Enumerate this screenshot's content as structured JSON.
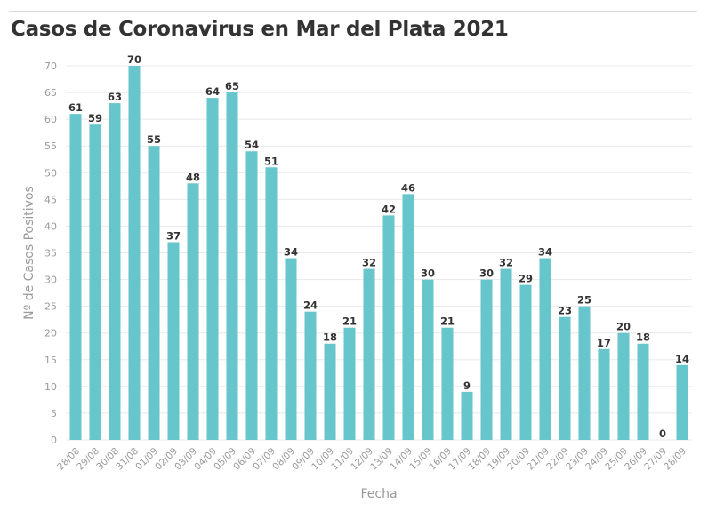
{
  "title": "Casos de Coronavirus en Mar del Plata 2021",
  "colors": {
    "bar": "#67c5cc",
    "grid": "#e8e8e8",
    "text": "#333333",
    "axis_text": "#999999"
  },
  "chart_data": {
    "type": "bar",
    "title": "Casos de Coronavirus en Mar del Plata 2021",
    "xlabel": "Fecha",
    "ylabel": "Nº de Casos Positivos",
    "ylim": [
      0,
      70
    ],
    "yticks": [
      0,
      5,
      10,
      15,
      20,
      25,
      30,
      35,
      40,
      45,
      50,
      55,
      60,
      65,
      70
    ],
    "grid": true,
    "categories": [
      "28/08",
      "29/08",
      "30/08",
      "31/08",
      "01/09",
      "02/09",
      "03/09",
      "04/09",
      "05/09",
      "06/09",
      "07/09",
      "08/09",
      "09/09",
      "10/09",
      "11/09",
      "12/09",
      "13/09",
      "14/09",
      "15/09",
      "16/09",
      "17/09",
      "18/09",
      "19/09",
      "20/09",
      "21/09",
      "22/09",
      "23/09",
      "24/09",
      "25/09",
      "26/09",
      "27/09",
      "28/09"
    ],
    "values": [
      61,
      59,
      63,
      70,
      55,
      37,
      48,
      64,
      65,
      54,
      51,
      34,
      24,
      18,
      21,
      32,
      42,
      46,
      30,
      21,
      9,
      30,
      32,
      29,
      34,
      23,
      25,
      17,
      20,
      18,
      0,
      14
    ],
    "data_labels": true
  }
}
